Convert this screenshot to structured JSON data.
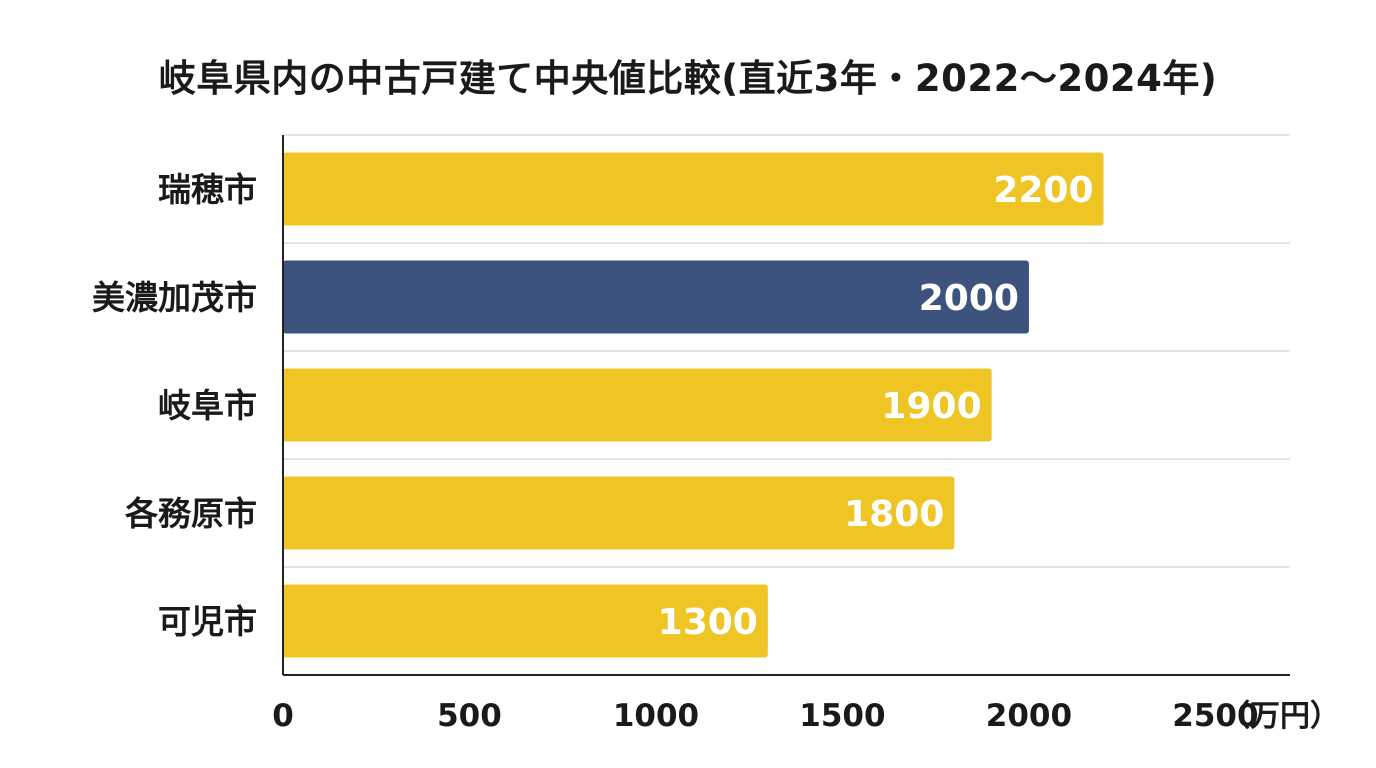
{
  "title": "岐阜県内の中古戸建て中央値比較(直近3年・2022〜2024年)",
  "chart_data": {
    "type": "bar",
    "orientation": "horizontal",
    "title": "岐阜県内の中古戸建て中央値比較(直近3年・2022〜2024年)",
    "categories": [
      "瑞穂市",
      "美濃加茂市",
      "岐阜市",
      "各務原市",
      "可児市"
    ],
    "values": [
      2200,
      2000,
      1900,
      1800,
      1300
    ],
    "data_labels": [
      "2200",
      "2000",
      "1900",
      "1800",
      "1300"
    ],
    "xlim": [
      0,
      2700
    ],
    "x_ticks": [
      0,
      500,
      1000,
      1500,
      2000,
      2500
    ],
    "x_tick_labels": [
      "0",
      "500",
      "1000",
      "1500",
      "2000",
      "2500"
    ],
    "unit_label": "（万円）",
    "highlight_index": 1,
    "colors": {
      "default": "#EFC526",
      "highlight": "#3D527C",
      "label": "#ffffff",
      "gridline": "#c8c8c8",
      "axis": "#222222"
    },
    "grid": true,
    "legend": "none"
  }
}
